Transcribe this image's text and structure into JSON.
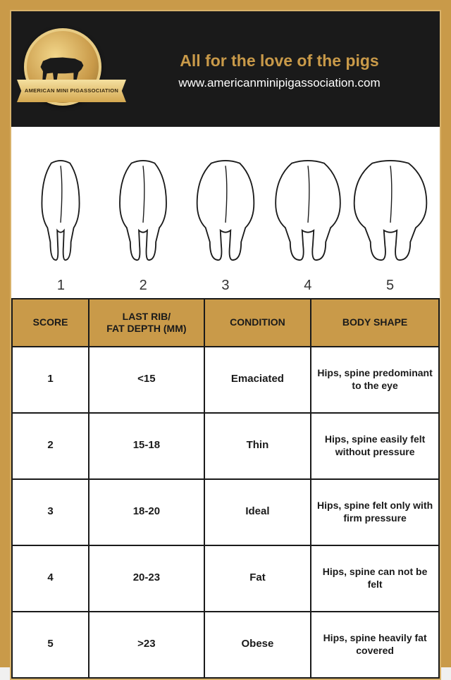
{
  "header": {
    "logo_top": "AMERICAN MINI PIG",
    "logo_bottom": "ASSOCIATION",
    "tagline": "All for the love of the pigs",
    "website": "www.americanminipigassociation.com"
  },
  "colors": {
    "page_bg": "#c99a49",
    "header_bg": "#1a1a1a",
    "accent": "#c99a49",
    "border": "#1a1a1a",
    "cell_bg": "#ffffff",
    "text": "#1a1a1a"
  },
  "pig_diagrams": {
    "numbers": [
      "1",
      "2",
      "3",
      "4",
      "5"
    ],
    "stroke": "#1a1a1a",
    "fill": "#ffffff",
    "widths": [
      58,
      72,
      88,
      100,
      112
    ]
  },
  "table": {
    "columns": [
      "SCORE",
      "LAST RIB/\nFAT DEPTH (MM)",
      "CONDITION",
      "BODY SHAPE"
    ],
    "rows": [
      [
        "1",
        "<15",
        "Emaciated",
        "Hips, spine predominant to the eye"
      ],
      [
        "2",
        "15-18",
        "Thin",
        "Hips, spine easily felt without pressure"
      ],
      [
        "3",
        "18-20",
        "Ideal",
        "Hips, spine felt only with firm pressure"
      ],
      [
        "4",
        "20-23",
        "Fat",
        "Hips, spine can not be felt"
      ],
      [
        "5",
        ">23",
        "Obese",
        "Hips, spine heavily fat covered"
      ]
    ],
    "col_widths": [
      "18%",
      "27%",
      "25%",
      "30%"
    ]
  }
}
